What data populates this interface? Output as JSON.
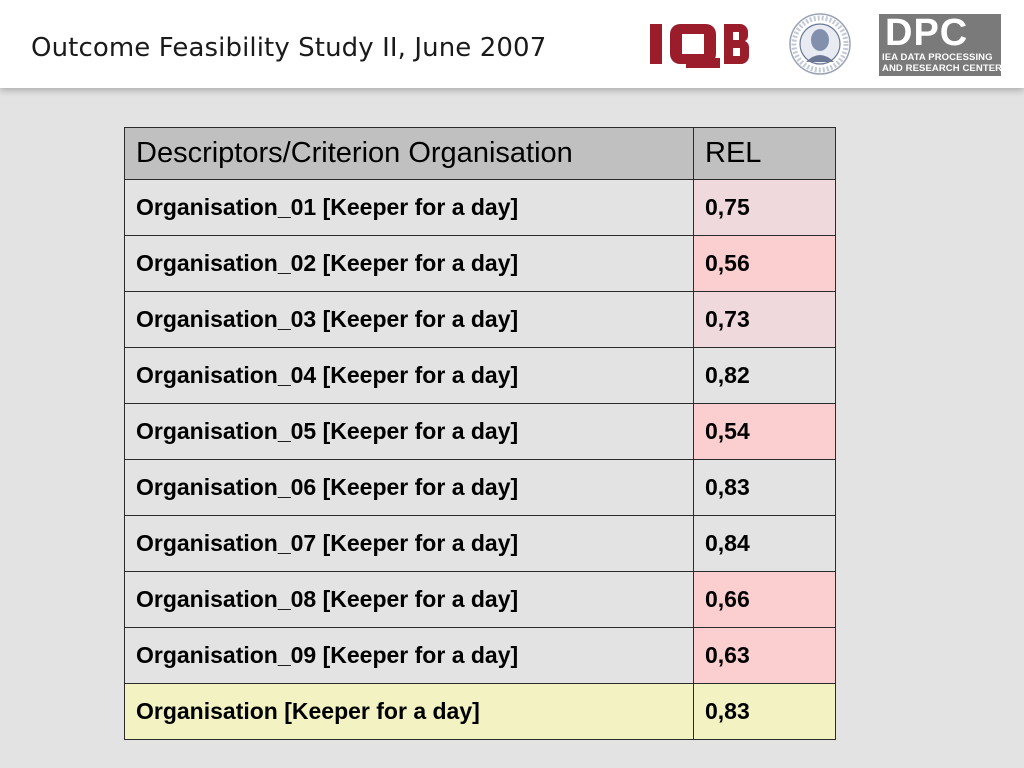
{
  "header": {
    "title": "Outcome Feasibility Study II, June 2007",
    "logos": {
      "iqb": "IQB",
      "seal_icon": "university-seal",
      "dpc_big": "DPC",
      "dpc_line1": "IEA DATA PROCESSING",
      "dpc_line2": "AND RESEARCH CENTER"
    }
  },
  "table": {
    "columns": [
      "Descriptors/Criterion Organisation",
      "REL"
    ],
    "rows": [
      {
        "label": "Organisation_01 [Keeper for a day]",
        "rel": "0,75",
        "highlight": "light"
      },
      {
        "label": "Organisation_02 [Keeper for a day]",
        "rel": "0,56",
        "highlight": "strong"
      },
      {
        "label": "Organisation_03 [Keeper for a day]",
        "rel": "0,73",
        "highlight": "light"
      },
      {
        "label": "Organisation_04 [Keeper for a day]",
        "rel": "0,82",
        "highlight": "none"
      },
      {
        "label": "Organisation_05 [Keeper for a day]",
        "rel": "0,54",
        "highlight": "strong"
      },
      {
        "label": "Organisation_06 [Keeper for a day]",
        "rel": "0,83",
        "highlight": "none"
      },
      {
        "label": "Organisation_07 [Keeper for a day]",
        "rel": "0,84",
        "highlight": "none"
      },
      {
        "label": "Organisation_08 [Keeper for a day]",
        "rel": "0,66",
        "highlight": "strong"
      },
      {
        "label": "Organisation_09 [Keeper for a day]",
        "rel": "0,63",
        "highlight": "strong"
      },
      {
        "label": "Organisation [Keeper for a day]",
        "rel": "0,83",
        "highlight": "none",
        "summary": true
      }
    ]
  },
  "colors": {
    "background": "#e3e3e3",
    "header_cell": "#c0c0c0",
    "rel_light": "#f0d9dc",
    "rel_strong": "#fbcfd0",
    "summary_row": "#f2f2c2",
    "iqb_red": "#9b1c2a"
  }
}
